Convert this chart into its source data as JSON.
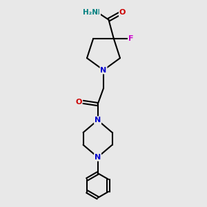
{
  "background_color": "#e8e8e8",
  "atom_colors": {
    "C": "#000000",
    "N": "#0000cc",
    "O": "#cc0000",
    "F": "#cc00cc",
    "H": "#008080"
  },
  "bond_color": "#000000",
  "bond_width": 1.5,
  "figsize": [
    3.0,
    3.0
  ],
  "dpi": 100,
  "xlim": [
    0,
    10
  ],
  "ylim": [
    0,
    14
  ]
}
